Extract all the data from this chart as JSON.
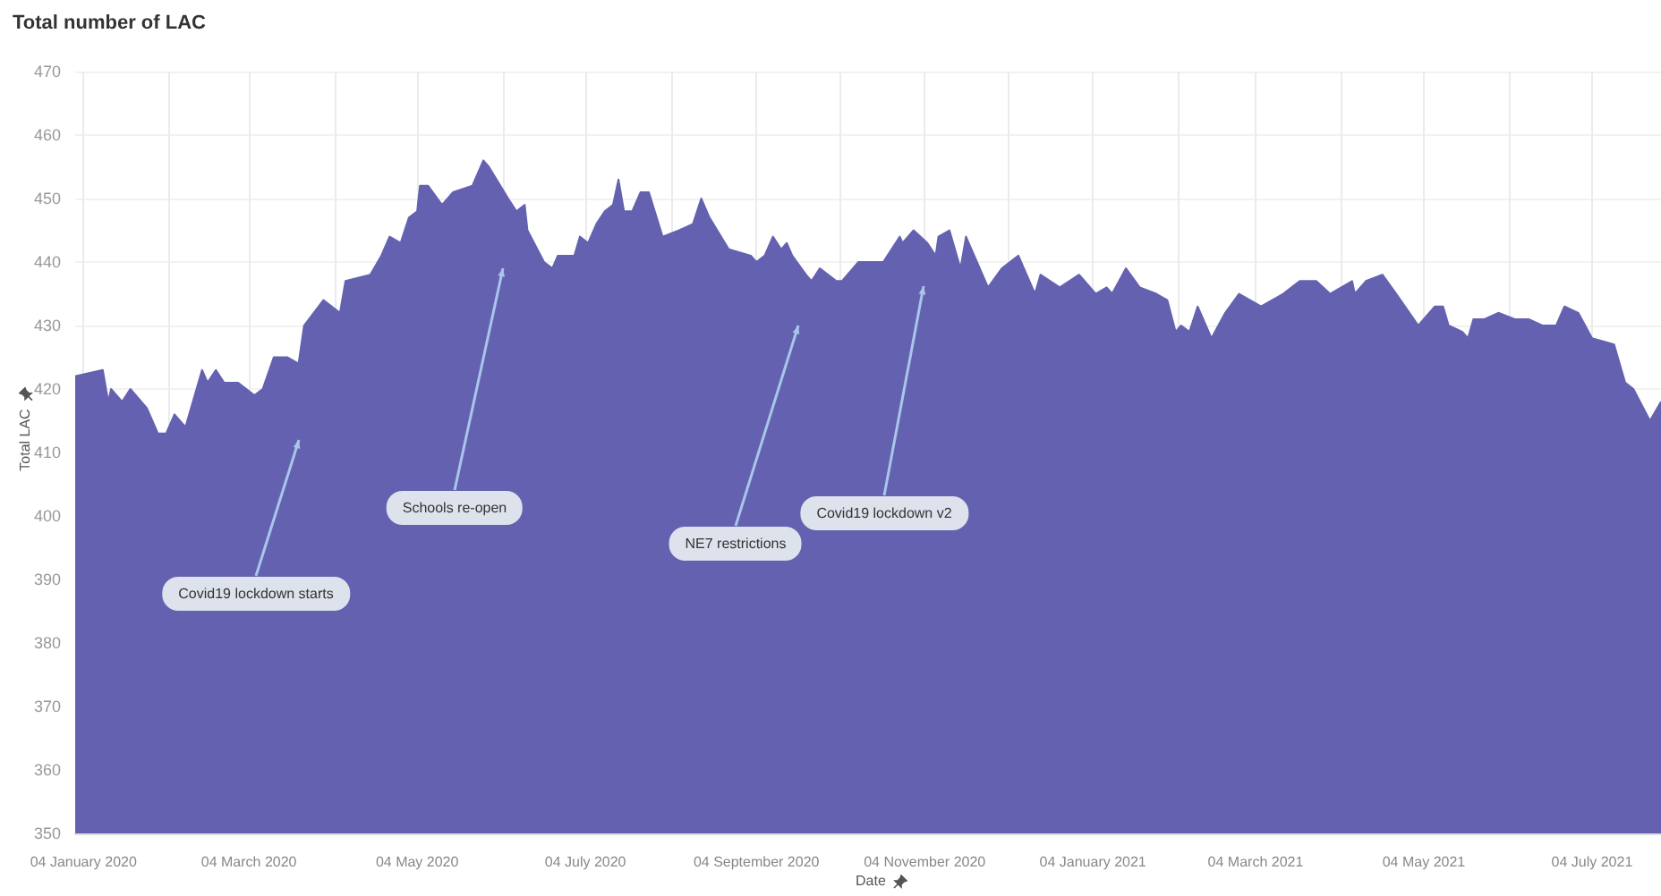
{
  "chart_data": {
    "type": "area",
    "title": "Total number of LAC",
    "xlabel": "Date",
    "ylabel": "Total LAC",
    "xlim": [
      "2020-01-01",
      "2021-07-29"
    ],
    "xticks": [
      {
        "value": "2020-01-04",
        "label": "04 January 2020"
      },
      {
        "value": "2020-02-04",
        "label": null
      },
      {
        "value": "2020-03-04",
        "label": "04 March 2020"
      },
      {
        "value": "2020-04-04",
        "label": null
      },
      {
        "value": "2020-05-04",
        "label": "04 May 2020"
      },
      {
        "value": "2020-06-04",
        "label": null
      },
      {
        "value": "2020-07-04",
        "label": "04 July 2020"
      },
      {
        "value": "2020-08-04",
        "label": null
      },
      {
        "value": "2020-09-04",
        "label": "04 September 2020"
      },
      {
        "value": "2020-10-04",
        "label": null
      },
      {
        "value": "2020-11-04",
        "label": "04 November 2020"
      },
      {
        "value": "2020-12-04",
        "label": null
      },
      {
        "value": "2021-01-04",
        "label": "04 January 2021"
      },
      {
        "value": "2021-02-04",
        "label": null
      },
      {
        "value": "2021-03-04",
        "label": "04 March 2021"
      },
      {
        "value": "2021-04-04",
        "label": null
      },
      {
        "value": "2021-05-04",
        "label": "04 May 2021"
      },
      {
        "value": "2021-06-04",
        "label": null
      },
      {
        "value": "2021-07-04",
        "label": "04 July 2021"
      }
    ],
    "ylim": [
      350,
      470
    ],
    "yticks": [
      350,
      360,
      370,
      380,
      390,
      400,
      410,
      420,
      430,
      440,
      450,
      460,
      470
    ],
    "grid": true,
    "marker": "none",
    "x": [
      "2020-01-01",
      "2020-01-11",
      "2020-01-13",
      "2020-01-14",
      "2020-01-18",
      "2020-01-21",
      "2020-01-27",
      "2020-01-31",
      "2020-02-03",
      "2020-02-06",
      "2020-02-10",
      "2020-02-16",
      "2020-02-18",
      "2020-02-21",
      "2020-02-24",
      "2020-02-29",
      "2020-03-06",
      "2020-03-09",
      "2020-03-13",
      "2020-03-18",
      "2020-03-22",
      "2020-03-24",
      "2020-03-31",
      "2020-04-06",
      "2020-04-08",
      "2020-04-17",
      "2020-04-21",
      "2020-04-24",
      "2020-04-28",
      "2020-05-01",
      "2020-05-04",
      "2020-05-05",
      "2020-05-08",
      "2020-05-13",
      "2020-05-17",
      "2020-05-24",
      "2020-05-28",
      "2020-05-30",
      "2020-06-06",
      "2020-06-09",
      "2020-06-12",
      "2020-06-13",
      "2020-06-19",
      "2020-06-22",
      "2020-06-24",
      "2020-06-30",
      "2020-07-02",
      "2020-07-05",
      "2020-07-08",
      "2020-07-11",
      "2020-07-14",
      "2020-07-16",
      "2020-07-18",
      "2020-07-21",
      "2020-07-24",
      "2020-07-27",
      "2020-08-01",
      "2020-08-07",
      "2020-08-12",
      "2020-08-15",
      "2020-08-18",
      "2020-08-25",
      "2020-09-02",
      "2020-09-04",
      "2020-09-07",
      "2020-09-10",
      "2020-09-13",
      "2020-09-15",
      "2020-09-17",
      "2020-09-22",
      "2020-09-24",
      "2020-09-27",
      "2020-10-03",
      "2020-10-05",
      "2020-10-11",
      "2020-10-20",
      "2020-10-26",
      "2020-10-27",
      "2020-10-31",
      "2020-11-05",
      "2020-11-08",
      "2020-11-09",
      "2020-11-13",
      "2020-11-17",
      "2020-11-19",
      "2020-11-27",
      "2020-12-02",
      "2020-12-08",
      "2020-12-14",
      "2020-12-16",
      "2020-12-23",
      "2020-12-30",
      "2021-01-05",
      "2021-01-09",
      "2021-01-11",
      "2021-01-16",
      "2021-01-21",
      "2021-01-27",
      "2021-01-31",
      "2021-02-03",
      "2021-02-05",
      "2021-02-08",
      "2021-02-11",
      "2021-02-16",
      "2021-02-21",
      "2021-02-26",
      "2021-03-02",
      "2021-03-06",
      "2021-03-14",
      "2021-03-20",
      "2021-03-26",
      "2021-03-31",
      "2021-04-08",
      "2021-04-09",
      "2021-04-13",
      "2021-04-19",
      "2021-04-24",
      "2021-05-02",
      "2021-05-08",
      "2021-05-11",
      "2021-05-13",
      "2021-05-18",
      "2021-05-20",
      "2021-05-22",
      "2021-05-26",
      "2021-05-31",
      "2021-06-06",
      "2021-06-11",
      "2021-06-16",
      "2021-06-21",
      "2021-06-24",
      "2021-06-29",
      "2021-07-04",
      "2021-07-12",
      "2021-07-16",
      "2021-07-19",
      "2021-07-25",
      "2021-07-29"
    ],
    "series": [
      {
        "color": "#6462b0",
        "values": [
          422,
          423,
          418,
          420,
          418,
          420,
          417,
          413,
          413,
          416,
          414,
          423,
          421,
          423,
          421,
          421,
          419,
          420,
          425,
          425,
          424,
          430,
          434,
          432,
          437,
          438,
          441,
          444,
          443,
          447,
          448,
          452,
          452,
          449,
          451,
          452,
          456,
          455,
          450,
          448,
          449,
          445,
          440,
          439,
          441,
          441,
          444,
          443,
          446,
          448,
          449,
          453,
          448,
          448,
          451,
          451,
          444,
          445,
          446,
          450,
          447,
          442,
          441,
          440,
          441,
          444,
          442,
          443,
          441,
          438,
          437,
          439,
          437,
          437,
          440,
          440,
          444,
          443,
          445,
          443,
          441,
          444,
          445,
          439,
          444,
          436,
          439,
          441,
          435,
          438,
          436,
          438,
          435,
          436,
          435,
          439,
          436,
          435,
          434,
          429,
          430,
          429,
          433,
          428,
          432,
          435,
          434,
          433,
          435,
          437,
          437,
          435,
          437,
          435,
          437,
          438,
          435,
          430,
          433,
          433,
          430,
          429,
          428,
          431,
          431,
          432,
          431,
          431,
          430,
          430,
          433,
          432,
          428,
          427,
          421,
          420,
          415,
          418
        ]
      }
    ],
    "annotations": [
      "Covid19 lockdown starts",
      "Schools re-open",
      "NE7 restrictions",
      "Covid19 lockdown v2"
    ]
  }
}
